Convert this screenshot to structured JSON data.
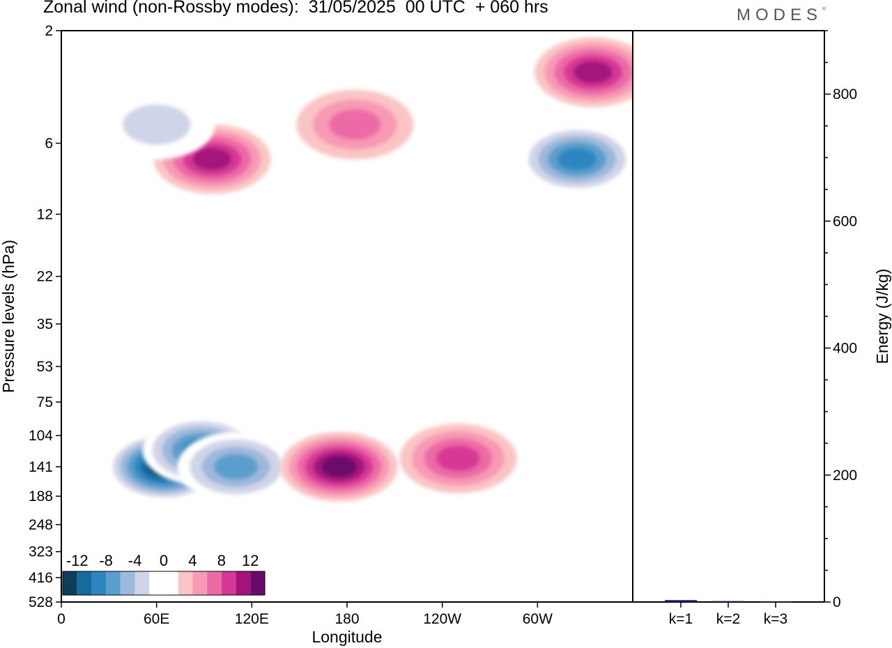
{
  "header": {
    "title": "Zonal wind (non-Rossby modes):  31/05/2025  00 UTC  + 060 hrs",
    "logo": "MODES",
    "logo_mark": "®"
  },
  "chart_data": [
    {
      "type": "heatmap",
      "title": "Zonal wind (non-Rossby modes):  31/05/2025  00 UTC  + 060 hrs",
      "xlabel": "Longitude",
      "ylabel": "Pressure levels (hPa)",
      "x_ticks": [
        "0",
        "60E",
        "120E",
        "180",
        "120W",
        "60W"
      ],
      "y_ticks": [
        "2",
        "6",
        "12",
        "22",
        "35",
        "53",
        "75",
        "104",
        "141",
        "188",
        "248",
        "323",
        "416",
        "528"
      ],
      "colorbar": {
        "labels": [
          "-12",
          "-8",
          "-4",
          "0",
          "4",
          "8",
          "12"
        ],
        "levels": [
          -14,
          -12,
          -10,
          -8,
          -6,
          -4,
          -2,
          2,
          4,
          6,
          8,
          10,
          12,
          14
        ],
        "colors": [
          "#0e3d5c",
          "#176a9c",
          "#2e86c1",
          "#5a9fcc",
          "#9cb8da",
          "#d0d4e8",
          "#ffffff",
          "#ffffff",
          "#fbc4c4",
          "#f79ab4",
          "#ec6aa5",
          "#d63796",
          "#a5127c",
          "#6a0a6a"
        ]
      },
      "features": [
        {
          "lon": 65,
          "level": 141,
          "value": -14
        },
        {
          "lon": 88,
          "level": 120,
          "value": -9
        },
        {
          "lon": 110,
          "level": 141,
          "value": -8
        },
        {
          "lon": 175,
          "level": 141,
          "value": 12
        },
        {
          "lon": 250,
          "level": 130,
          "value": 7
        },
        {
          "lon": 95,
          "level": 7,
          "value": 9
        },
        {
          "lon": 185,
          "level": 5,
          "value": 6
        },
        {
          "lon": 325,
          "level": 7,
          "value": -9
        },
        {
          "lon": 335,
          "level": 3,
          "value": 9
        },
        {
          "lon": 60,
          "level": 5,
          "value": -4
        }
      ]
    },
    {
      "type": "bar",
      "ylabel": "Energy (J/kg)",
      "categories": [
        "k=1",
        "k=2",
        "k=3"
      ],
      "values": [
        3,
        1.5,
        0.5
      ],
      "ylim": [
        0,
        900
      ],
      "y_ticks": [
        "0",
        "200",
        "400",
        "600",
        "800"
      ]
    }
  ]
}
